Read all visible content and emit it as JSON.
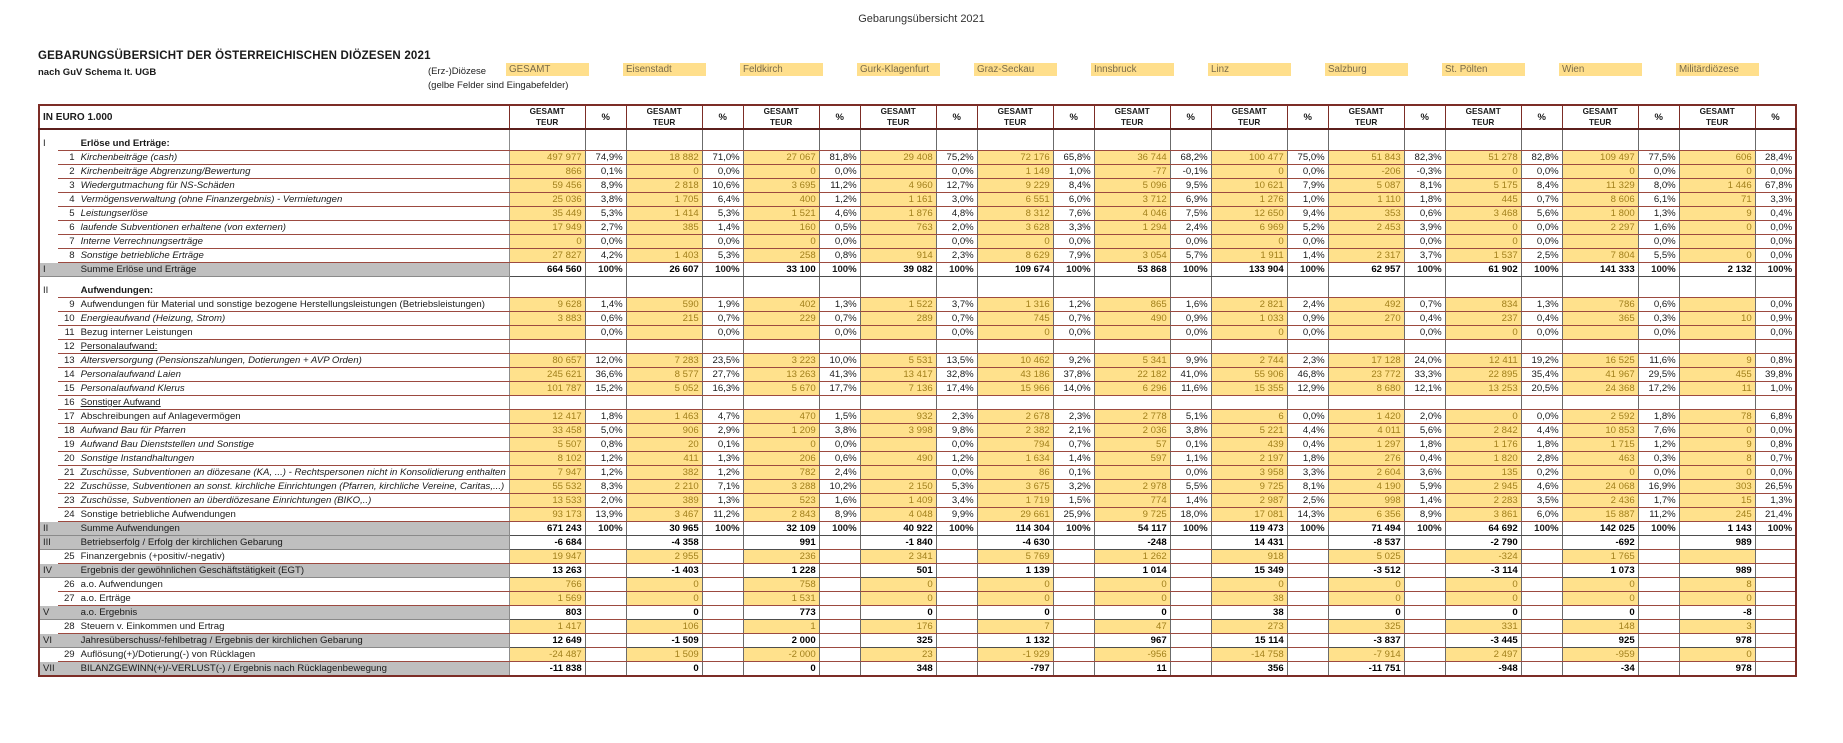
{
  "page_title": "Gebarungsübersicht 2021",
  "header": {
    "title": "GEBARUNGSÜBERSICHT DER ÖSTERREICHISCHEN DIÖZESEN 2021",
    "subtitle": "nach GuV Schema lt. UGB",
    "diocese_label": "(Erz-)Diözese",
    "input_note": "(gelbe Felder sind Eingabefelder)",
    "unit_label": "IN EURO 1.000",
    "value_col_header": "GESAMT TEUR",
    "pct_col_header": "%"
  },
  "colors": {
    "input_cell_bg": "#ffe18c",
    "input_text": "#a2801c",
    "sum_band_bg": "#bfbfbf",
    "grid_maroon": "#7c2d26"
  },
  "dioceses": [
    "GESAMT",
    "Eisenstadt",
    "Feldkirch",
    "Gurk-Klagenfurt",
    "Graz-Seckau",
    "Innsbruck",
    "Linz",
    "Salzburg",
    "St. Pölten",
    "Wien",
    "Militärdiözese"
  ],
  "rows": [
    {
      "type": "spacer"
    },
    {
      "type": "sec",
      "roman": "I",
      "label": "Erlöse und Erträge:"
    },
    {
      "type": "data",
      "num": "1",
      "italic": true,
      "label": "Kirchenbeiträge (cash)",
      "values": [
        "497 977",
        "18 882",
        "27 067",
        "29 408",
        "72 176",
        "36 744",
        "100 477",
        "51 843",
        "51 278",
        "109 497",
        "606"
      ],
      "pcts": [
        "74,9%",
        "71,0%",
        "81,8%",
        "75,2%",
        "65,8%",
        "68,2%",
        "75,0%",
        "82,3%",
        "82,8%",
        "77,5%",
        "28,4%"
      ]
    },
    {
      "type": "data",
      "num": "2",
      "italic": true,
      "label": "Kirchenbeiträge Abgrenzung/Bewertung",
      "values": [
        "866",
        "0",
        "0",
        "",
        "1 149",
        "-77",
        "0",
        "-206",
        "0",
        "0",
        "0"
      ],
      "pcts": [
        "0,1%",
        "0,0%",
        "0,0%",
        "0,0%",
        "1,0%",
        "-0,1%",
        "0,0%",
        "-0,3%",
        "0,0%",
        "0,0%",
        "0,0%"
      ]
    },
    {
      "type": "data",
      "num": "3",
      "italic": true,
      "label": "Wiedergutmachung für NS-Schäden",
      "values": [
        "59 456",
        "2 818",
        "3 695",
        "4 960",
        "9 229",
        "5 096",
        "10 621",
        "5 087",
        "5 175",
        "11 329",
        "1 446"
      ],
      "pcts": [
        "8,9%",
        "10,6%",
        "11,2%",
        "12,7%",
        "8,4%",
        "9,5%",
        "7,9%",
        "8,1%",
        "8,4%",
        "8,0%",
        "67,8%"
      ]
    },
    {
      "type": "data",
      "num": "4",
      "italic": true,
      "label": "Vermögensverwaltung (ohne Finanzergebnis) - Vermietungen",
      "values": [
        "25 036",
        "1 705",
        "400",
        "1 161",
        "6 551",
        "3 712",
        "1 276",
        "1 110",
        "445",
        "8 606",
        "71"
      ],
      "pcts": [
        "3,8%",
        "6,4%",
        "1,2%",
        "3,0%",
        "6,0%",
        "6,9%",
        "1,0%",
        "1,8%",
        "0,7%",
        "6,1%",
        "3,3%"
      ]
    },
    {
      "type": "data",
      "num": "5",
      "italic": true,
      "label": "Leistungserlöse",
      "values": [
        "35 449",
        "1 414",
        "1 521",
        "1 876",
        "8 312",
        "4 046",
        "12 650",
        "353",
        "3 468",
        "1 800",
        "9"
      ],
      "pcts": [
        "5,3%",
        "5,3%",
        "4,6%",
        "4,8%",
        "7,6%",
        "7,5%",
        "9,4%",
        "0,6%",
        "5,6%",
        "1,3%",
        "0,4%"
      ]
    },
    {
      "type": "data",
      "num": "6",
      "italic": true,
      "label": "laufende Subventionen erhaltene (von externen)",
      "values": [
        "17 949",
        "385",
        "160",
        "763",
        "3 628",
        "1 294",
        "6 969",
        "2 453",
        "0",
        "2 297",
        "0"
      ],
      "pcts": [
        "2,7%",
        "1,4%",
        "0,5%",
        "2,0%",
        "3,3%",
        "2,4%",
        "5,2%",
        "3,9%",
        "0,0%",
        "1,6%",
        "0,0%"
      ]
    },
    {
      "type": "data",
      "num": "7",
      "italic": true,
      "label": "Interne Verrechnungserträge",
      "values": [
        "0",
        "",
        "0",
        "",
        "0",
        "",
        "0",
        "",
        "0",
        "",
        ""
      ],
      "pcts": [
        "0,0%",
        "0,0%",
        "0,0%",
        "0,0%",
        "0,0%",
        "0,0%",
        "0,0%",
        "0,0%",
        "0,0%",
        "0,0%",
        "0,0%"
      ]
    },
    {
      "type": "data",
      "num": "8",
      "italic": true,
      "label": "Sonstige betriebliche Erträge",
      "values": [
        "27 827",
        "1 403",
        "258",
        "914",
        "8 629",
        "3 054",
        "1 911",
        "2 317",
        "1 537",
        "7 804",
        "0"
      ],
      "pcts": [
        "4,2%",
        "5,3%",
        "0,8%",
        "2,3%",
        "7,9%",
        "5,7%",
        "1,4%",
        "3,7%",
        "2,5%",
        "5,5%",
        "0,0%"
      ]
    },
    {
      "type": "sum",
      "roman": "I",
      "label": "Summe Erlöse und Erträge",
      "values": [
        "664 560",
        "26 607",
        "33 100",
        "39 082",
        "109 674",
        "53 868",
        "133 904",
        "62 957",
        "61 902",
        "141 333",
        "2 132"
      ],
      "pcts": [
        "100%",
        "100%",
        "100%",
        "100%",
        "100%",
        "100%",
        "100%",
        "100%",
        "100%",
        "100%",
        "100%"
      ]
    },
    {
      "type": "spacer"
    },
    {
      "type": "sec",
      "roman": "II",
      "label": "Aufwendungen:"
    },
    {
      "type": "data",
      "num": "9",
      "label": "Aufwendungen für Material und sonstige bezogene Herstellungsleistungen (Betriebsleistungen)",
      "values": [
        "9 628",
        "590",
        "402",
        "1 522",
        "1 316",
        "865",
        "2 821",
        "492",
        "834",
        "786",
        ""
      ],
      "pcts": [
        "1,4%",
        "1,9%",
        "1,3%",
        "3,7%",
        "1,2%",
        "1,6%",
        "2,4%",
        "0,7%",
        "1,3%",
        "0,6%",
        "0,0%"
      ]
    },
    {
      "type": "data",
      "num": "10",
      "italic": true,
      "label": "Energieaufwand (Heizung, Strom)",
      "values": [
        "3 883",
        "215",
        "229",
        "289",
        "745",
        "490",
        "1 033",
        "270",
        "237",
        "365",
        "10"
      ],
      "pcts": [
        "0,6%",
        "0,7%",
        "0,7%",
        "0,7%",
        "0,7%",
        "0,9%",
        "0,9%",
        "0,4%",
        "0,4%",
        "0,3%",
        "0,9%"
      ]
    },
    {
      "type": "data",
      "num": "11",
      "label": "Bezug interner Leistungen",
      "values": [
        "",
        "",
        "",
        "",
        "0",
        "",
        "0",
        "",
        "0",
        "",
        ""
      ],
      "pcts": [
        "0,0%",
        "0,0%",
        "0,0%",
        "0,0%",
        "0,0%",
        "0,0%",
        "0,0%",
        "0,0%",
        "0,0%",
        "0,0%",
        "0,0%"
      ]
    },
    {
      "type": "label",
      "num": "12",
      "underline": true,
      "label": "Personalaufwand:"
    },
    {
      "type": "data",
      "num": "13",
      "italic": true,
      "label": "Altersversorgung (Pensionszahlungen, Dotierungen + AVP Orden)",
      "values": [
        "80 657",
        "7 283",
        "3 223",
        "5 531",
        "10 462",
        "5 341",
        "2 744",
        "17 128",
        "12 411",
        "16 525",
        "9"
      ],
      "pcts": [
        "12,0%",
        "23,5%",
        "10,0%",
        "13,5%",
        "9,2%",
        "9,9%",
        "2,3%",
        "24,0%",
        "19,2%",
        "11,6%",
        "0,8%"
      ]
    },
    {
      "type": "data",
      "num": "14",
      "italic": true,
      "label": "Personalaufwand Laien",
      "values": [
        "245 621",
        "8 577",
        "13 263",
        "13 417",
        "43 186",
        "22 182",
        "55 906",
        "23 772",
        "22 895",
        "41 967",
        "455"
      ],
      "pcts": [
        "36,6%",
        "27,7%",
        "41,3%",
        "32,8%",
        "37,8%",
        "41,0%",
        "46,8%",
        "33,3%",
        "35,4%",
        "29,5%",
        "39,8%"
      ]
    },
    {
      "type": "data",
      "num": "15",
      "italic": true,
      "label": "Personalaufwand Klerus",
      "values": [
        "101 787",
        "5 052",
        "5 670",
        "7 136",
        "15 966",
        "6 296",
        "15 355",
        "8 680",
        "13 253",
        "24 368",
        "11"
      ],
      "pcts": [
        "15,2%",
        "16,3%",
        "17,7%",
        "17,4%",
        "14,0%",
        "11,6%",
        "12,9%",
        "12,1%",
        "20,5%",
        "17,2%",
        "1,0%"
      ]
    },
    {
      "type": "label",
      "num": "16",
      "underline": true,
      "label": "Sonstiger Aufwand"
    },
    {
      "type": "data",
      "num": "17",
      "label": "Abschreibungen auf Anlagevermögen",
      "values": [
        "12 417",
        "1 463",
        "470",
        "932",
        "2 678",
        "2 778",
        "6",
        "1 420",
        "0",
        "2 592",
        "78"
      ],
      "pcts": [
        "1,8%",
        "4,7%",
        "1,5%",
        "2,3%",
        "2,3%",
        "5,1%",
        "0,0%",
        "2,0%",
        "0,0%",
        "1,8%",
        "6,8%"
      ]
    },
    {
      "type": "data",
      "num": "18",
      "italic": true,
      "label": "Aufwand Bau für Pfarren",
      "values": [
        "33 458",
        "906",
        "1 209",
        "3 998",
        "2 382",
        "2 036",
        "5 221",
        "4 011",
        "2 842",
        "10 853",
        "0"
      ],
      "pcts": [
        "5,0%",
        "2,9%",
        "3,8%",
        "9,8%",
        "2,1%",
        "3,8%",
        "4,4%",
        "5,6%",
        "4,4%",
        "7,6%",
        "0,0%"
      ]
    },
    {
      "type": "data",
      "num": "19",
      "italic": true,
      "label": "Aufwand Bau Dienststellen und Sonstige",
      "values": [
        "5 507",
        "20",
        "0",
        "",
        "794",
        "57",
        "439",
        "1 297",
        "1 176",
        "1 715",
        "9"
      ],
      "pcts": [
        "0,8%",
        "0,1%",
        "0,0%",
        "0,0%",
        "0,7%",
        "0,1%",
        "0,4%",
        "1,8%",
        "1,8%",
        "1,2%",
        "0,8%"
      ]
    },
    {
      "type": "data",
      "num": "20",
      "italic": true,
      "label": "Sonstige Instandhaltungen",
      "values": [
        "8 102",
        "411",
        "206",
        "490",
        "1 634",
        "597",
        "2 197",
        "276",
        "1 820",
        "463",
        "8"
      ],
      "pcts": [
        "1,2%",
        "1,3%",
        "0,6%",
        "1,2%",
        "1,4%",
        "1,1%",
        "1,8%",
        "0,4%",
        "2,8%",
        "0,3%",
        "0,7%"
      ]
    },
    {
      "type": "data",
      "num": "21",
      "italic": true,
      "label": "Zuschüsse, Subventionen an diözesane (KA, ...) - Rechtspersonen nicht in Konsolidierung enthalten",
      "values": [
        "7 947",
        "382",
        "782",
        "",
        "86",
        "",
        "3 958",
        "2 604",
        "135",
        "0",
        "0"
      ],
      "pcts": [
        "1,2%",
        "1,2%",
        "2,4%",
        "0,0%",
        "0,1%",
        "0,0%",
        "3,3%",
        "3,6%",
        "0,2%",
        "0,0%",
        "0,0%"
      ]
    },
    {
      "type": "data",
      "num": "22",
      "italic": true,
      "label": "Zuschüsse, Subventionen an sonst. kirchliche Einrichtungen (Pfarren, kirchliche Vereine, Caritas,...)",
      "values": [
        "55 532",
        "2 210",
        "3 288",
        "2 150",
        "3 675",
        "2 978",
        "9 725",
        "4 190",
        "2 945",
        "24 068",
        "303"
      ],
      "pcts": [
        "8,3%",
        "7,1%",
        "10,2%",
        "5,3%",
        "3,2%",
        "5,5%",
        "8,1%",
        "5,9%",
        "4,6%",
        "16,9%",
        "26,5%"
      ]
    },
    {
      "type": "data",
      "num": "23",
      "italic": true,
      "label": "Zuschüsse, Subventionen an überdiözesane Einrichtungen (BIKO,..)",
      "values": [
        "13 533",
        "389",
        "523",
        "1 409",
        "1 719",
        "774",
        "2 987",
        "998",
        "2 283",
        "2 436",
        "15"
      ],
      "pcts": [
        "2,0%",
        "1,3%",
        "1,6%",
        "3,4%",
        "1,5%",
        "1,4%",
        "2,5%",
        "1,4%",
        "3,5%",
        "1,7%",
        "1,3%"
      ]
    },
    {
      "type": "data",
      "num": "24",
      "label": "Sonstige betriebliche Aufwendungen",
      "values": [
        "93 173",
        "3 467",
        "2 843",
        "4 048",
        "29 661",
        "9 725",
        "17 081",
        "6 356",
        "3 861",
        "15 887",
        "245"
      ],
      "pcts": [
        "13,9%",
        "11,2%",
        "8,9%",
        "9,9%",
        "25,9%",
        "18,0%",
        "14,3%",
        "8,9%",
        "6,0%",
        "11,2%",
        "21,4%"
      ]
    },
    {
      "type": "sum",
      "roman": "II",
      "label": "Summe Aufwendungen",
      "values": [
        "671 243",
        "30 965",
        "32 109",
        "40 922",
        "114 304",
        "54 117",
        "119 473",
        "71 494",
        "64 692",
        "142 025",
        "1 143"
      ],
      "pcts": [
        "100%",
        "100%",
        "100%",
        "100%",
        "100%",
        "100%",
        "100%",
        "100%",
        "100%",
        "100%",
        "100%"
      ]
    },
    {
      "type": "res",
      "roman": "III",
      "label": "Betriebserfolg / Erfolg der kirchlichen Gebarung",
      "values": [
        "-6 684",
        "-4 358",
        "991",
        "-1 840",
        "-4 630",
        "-248",
        "14 431",
        "-8 537",
        "-2 790",
        "-692",
        "989"
      ]
    },
    {
      "type": "data2",
      "num": "25",
      "label": "Finanzergebnis (+positiv/-negativ)",
      "values": [
        "19 947",
        "2 955",
        "236",
        "2 341",
        "5 769",
        "1 262",
        "918",
        "5 025",
        "-324",
        "1 765",
        ""
      ]
    },
    {
      "type": "res",
      "roman": "IV",
      "label": "Ergebnis der gewöhnlichen Geschäftstätigkeit (EGT)",
      "values": [
        "13 263",
        "-1 403",
        "1 228",
        "501",
        "1 139",
        "1 014",
        "15 349",
        "-3 512",
        "-3 114",
        "1 073",
        "989"
      ]
    },
    {
      "type": "data2",
      "num": "26",
      "label": "a.o. Aufwendungen",
      "values": [
        "766",
        "0",
        "758",
        "0",
        "0",
        "0",
        "0",
        "0",
        "0",
        "0",
        "8"
      ]
    },
    {
      "type": "data2",
      "num": "27",
      "label": "a.o. Erträge",
      "values": [
        "1 569",
        "0",
        "1 531",
        "0",
        "0",
        "0",
        "38",
        "0",
        "0",
        "0",
        "0"
      ]
    },
    {
      "type": "res",
      "roman": "V",
      "label": "a.o. Ergebnis",
      "values": [
        "803",
        "0",
        "773",
        "0",
        "0",
        "0",
        "38",
        "0",
        "0",
        "0",
        "-8"
      ]
    },
    {
      "type": "data2",
      "num": "28",
      "label": "Steuern v. Einkommen und Ertrag",
      "values": [
        "1 417",
        "106",
        "1",
        "176",
        "7",
        "47",
        "273",
        "325",
        "331",
        "148",
        "3"
      ]
    },
    {
      "type": "res",
      "roman": "VI",
      "label": "Jahresüberschuss/-fehlbetrag / Ergebnis der kirchlichen Gebarung",
      "values": [
        "12 649",
        "-1 509",
        "2 000",
        "325",
        "1 132",
        "967",
        "15 114",
        "-3 837",
        "-3 445",
        "925",
        "978"
      ]
    },
    {
      "type": "data2",
      "num": "29",
      "label": "Auflösung(+)/Dotierung(-) von Rücklagen",
      "values": [
        "-24 487",
        "1 509",
        "-2 000",
        "23",
        "-1 929",
        "-956",
        "-14 758",
        "-7 914",
        "2 497",
        "-959",
        "0"
      ]
    },
    {
      "type": "res",
      "roman": "VII",
      "label": "BILANZGEWINN(+)/-VERLUST(-) / Ergebnis nach Rücklagenbewegung",
      "values": [
        "-11 838",
        "0",
        "0",
        "348",
        "-797",
        "11",
        "356",
        "-11 751",
        "-948",
        "-34",
        "978"
      ]
    }
  ]
}
